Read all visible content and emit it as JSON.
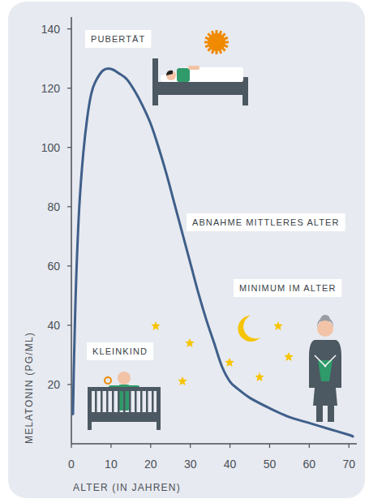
{
  "chart_data": {
    "type": "line",
    "x_label": "ALTER (IN JAHREN)",
    "y_label": "MELATONIN (PG/ML)",
    "x": [
      0.4,
      0.7,
      1.2,
      2,
      3,
      4,
      5,
      6,
      8,
      10,
      12,
      14,
      16,
      18,
      20,
      22,
      24,
      26,
      28,
      30,
      32,
      34,
      36,
      38,
      40,
      42,
      45,
      50,
      55,
      60,
      65,
      70,
      71
    ],
    "values": [
      10,
      30,
      55,
      80,
      98,
      110,
      118,
      122,
      126,
      126.5,
      125,
      123,
      119,
      114,
      108,
      100,
      91,
      81,
      71,
      61,
      51,
      42,
      34,
      26,
      21,
      18.5,
      15.5,
      12,
      9,
      7,
      5,
      3,
      2.5
    ],
    "color": "#3f5f8a",
    "xlim": [
      0,
      72
    ],
    "ylim": [
      0,
      144
    ],
    "xticks": [
      0,
      10,
      20,
      30,
      40,
      50,
      60,
      70
    ],
    "yticks": [
      20,
      40,
      60,
      80,
      100,
      120,
      140
    ],
    "annotations": [
      "PUBERTÄT",
      "ABNAHME MITTLERES ALTER",
      "MINIMUM IM ALTER",
      "KLEINKIND"
    ]
  }
}
